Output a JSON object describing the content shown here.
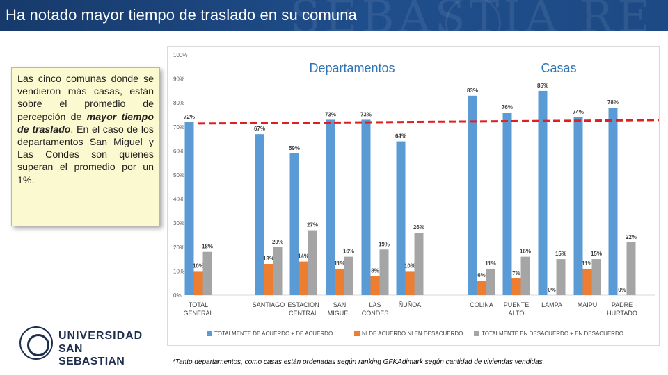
{
  "header": {
    "title": "Ha notado mayor tiempo de traslado en su comuna"
  },
  "textbox": {
    "part1": "Las cinco comunas donde se vendieron más casas, están sobre el promedio de percepción de ",
    "bold": "mayor tiempo de traslado",
    "part2": ". En el caso de los departamentos San Miguel y Las Condes son quienes superan el promedio por un 1%."
  },
  "logo": {
    "line1": "UNIVERSIDAD",
    "line2": "SAN SEBASTIAN"
  },
  "footnote": "*Tanto departamentos, como casas están ordenadas según ranking GFKAdimark según cantidad de viviendas vendidas.",
  "colors": {
    "series1": "#5b9bd5",
    "series2": "#ed7d31",
    "series3": "#a5a5a5",
    "average_line": "#e02020"
  },
  "chart_data": {
    "type": "bar",
    "section_labels": [
      "Departamentos",
      "Casas"
    ],
    "categories": [
      [
        "TOTAL",
        "GENERAL"
      ],
      [
        "SANTIAGO"
      ],
      [
        "ESTACION",
        "CENTRAL"
      ],
      [
        "SAN",
        "MIGUEL"
      ],
      [
        "LAS",
        "CONDES"
      ],
      [
        "ÑUÑOA"
      ],
      [
        "COLINA"
      ],
      [
        "PUENTE",
        "ALTO"
      ],
      [
        "LAMPA"
      ],
      [
        "MAIPU"
      ],
      [
        "PADRE",
        "HURTADO"
      ]
    ],
    "series": [
      {
        "name": "TOTALMENTE DE ACUERDO + DE ACUERDO",
        "values": [
          72,
          67,
          59,
          73,
          73,
          64,
          83,
          76,
          85,
          74,
          78
        ],
        "labels": [
          "72%",
          "67%",
          "59%",
          "73%",
          "73%",
          "64%",
          "83%",
          "76%",
          "85%",
          "74%",
          "78%"
        ]
      },
      {
        "name": "NI DE ACUERDO NI EN DESACUERDO",
        "values": [
          10,
          13,
          14,
          11,
          8,
          10,
          6,
          7,
          0,
          11,
          0
        ],
        "labels": [
          "10%",
          "13%",
          "14%",
          "11%",
          "8%",
          "10%",
          "6%",
          "7%",
          "0%",
          "11%",
          "0%"
        ]
      },
      {
        "name": "TOTALMENTE EN DESACUERDO + EN DESACUERDO",
        "values": [
          18,
          20,
          27,
          16,
          19,
          26,
          11,
          16,
          15,
          15,
          22
        ],
        "labels": [
          "18%",
          "20%",
          "27%",
          "16%",
          "19%",
          "26%",
          "11%",
          "16%",
          "15%",
          "15%",
          "22%"
        ]
      }
    ],
    "average_value": 72,
    "yticks": [
      "0%",
      "10%",
      "20%",
      "30%",
      "40%",
      "50%",
      "60%",
      "70%",
      "80%",
      "90%",
      "100%"
    ],
    "ylim": [
      0,
      100
    ],
    "legend_position": "bottom",
    "grid": false
  }
}
